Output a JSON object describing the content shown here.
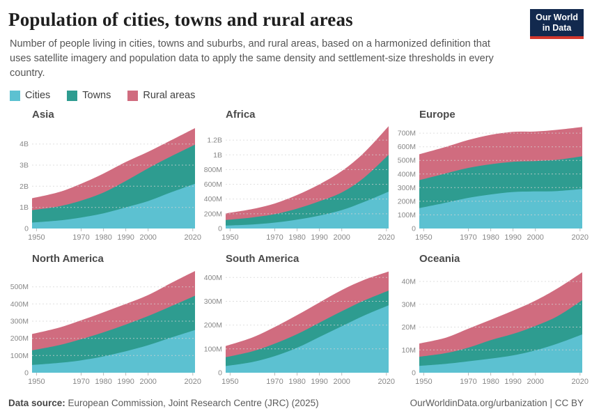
{
  "header": {
    "title": "Population of cities, towns and rural areas",
    "subtitle": "Number of people living in cities, towns and suburbs, and rural areas, based on a harmonized definition that uses satellite imagery and population data to apply the same density and settlement-size thresholds in every country.",
    "logo": {
      "line1": "Our World",
      "line2": "in Data"
    }
  },
  "legend": {
    "items": [
      {
        "label": "Cities",
        "color": "#5cc1d1"
      },
      {
        "label": "Towns",
        "color": "#2e9c90"
      },
      {
        "label": "Rural areas",
        "color": "#d06c7f"
      }
    ]
  },
  "style": {
    "grid_color": "#d4d4d4",
    "tick_color": "#b9b9b9",
    "axis_text_color": "#878787",
    "accent_navy": "#12294e",
    "accent_red": "#d2372c"
  },
  "footer": {
    "source_label": "Data source:",
    "source_text": " European Commission, Joint Research Centre (JRC) (2025)",
    "right_text": "OurWorldinData.org/urbanization | CC BY"
  },
  "chart_data": [
    {
      "type": "area",
      "stacked": true,
      "title": "Asia",
      "unit": "billions",
      "x": [
        1948,
        1960,
        1970,
        1980,
        1990,
        2000,
        2010,
        2021
      ],
      "xlim": [
        1948,
        2021
      ],
      "xticks": [
        1950,
        1970,
        1980,
        1990,
        2000,
        2020
      ],
      "ylim": [
        0,
        4.88
      ],
      "grid": true,
      "yticks": [
        {
          "v": 0,
          "label": "0"
        },
        {
          "v": 1,
          "label": "1B"
        },
        {
          "v": 2,
          "label": "2B"
        },
        {
          "v": 3,
          "label": "3B"
        },
        {
          "v": 4,
          "label": "4B"
        }
      ],
      "series": [
        {
          "name": "Cities",
          "color": "#5cc1d1",
          "values": [
            0.28,
            0.38,
            0.52,
            0.72,
            1.0,
            1.3,
            1.7,
            2.12
          ]
        },
        {
          "name": "Towns",
          "color": "#2e9c90",
          "values": [
            0.59,
            0.67,
            0.8,
            0.98,
            1.25,
            1.55,
            1.7,
            1.85
          ]
        },
        {
          "name": "Rural areas",
          "color": "#d06c7f",
          "values": [
            0.56,
            0.67,
            0.8,
            0.9,
            0.9,
            0.78,
            0.76,
            0.78
          ]
        }
      ]
    },
    {
      "type": "area",
      "stacked": true,
      "title": "Africa",
      "unit": "millions",
      "x": [
        1948,
        1960,
        1970,
        1980,
        1990,
        2000,
        2010,
        2021
      ],
      "xlim": [
        1948,
        2021
      ],
      "xticks": [
        1950,
        1970,
        1980,
        1990,
        2000,
        2020
      ],
      "ylim": [
        0,
        1400
      ],
      "grid": true,
      "yticks": [
        {
          "v": 0,
          "label": "0"
        },
        {
          "v": 200,
          "label": "200M"
        },
        {
          "v": 400,
          "label": "400M"
        },
        {
          "v": 600,
          "label": "600M"
        },
        {
          "v": 800,
          "label": "800M"
        },
        {
          "v": 1000,
          "label": "1B"
        },
        {
          "v": 1200,
          "label": "1.2B"
        }
      ],
      "series": [
        {
          "name": "Cities",
          "color": "#5cc1d1",
          "values": [
            40,
            55,
            80,
            120,
            175,
            250,
            360,
            500
          ]
        },
        {
          "name": "Towns",
          "color": "#2e9c90",
          "values": [
            75,
            95,
            115,
            150,
            195,
            240,
            330,
            500
          ]
        },
        {
          "name": "Rural areas",
          "color": "#d06c7f",
          "values": [
            90,
            115,
            145,
            185,
            230,
            290,
            340,
            390
          ]
        }
      ]
    },
    {
      "type": "area",
      "stacked": true,
      "title": "Europe",
      "unit": "millions",
      "x": [
        1948,
        1960,
        1970,
        1980,
        1990,
        2000,
        2010,
        2021
      ],
      "xlim": [
        1948,
        2021
      ],
      "xticks": [
        1950,
        1970,
        1980,
        1990,
        2000,
        2020
      ],
      "ylim": [
        0,
        757
      ],
      "grid": true,
      "yticks": [
        {
          "v": 0,
          "label": "0"
        },
        {
          "v": 100,
          "label": "100M"
        },
        {
          "v": 200,
          "label": "200M"
        },
        {
          "v": 300,
          "label": "300M"
        },
        {
          "v": 400,
          "label": "400M"
        },
        {
          "v": 500,
          "label": "500M"
        },
        {
          "v": 600,
          "label": "600M"
        },
        {
          "v": 700,
          "label": "700M"
        }
      ],
      "series": [
        {
          "name": "Cities",
          "color": "#5cc1d1",
          "values": [
            150,
            190,
            225,
            250,
            268,
            272,
            275,
            290
          ]
        },
        {
          "name": "Towns",
          "color": "#2e9c90",
          "values": [
            205,
            215,
            220,
            222,
            222,
            223,
            230,
            240
          ]
        },
        {
          "name": "Rural areas",
          "color": "#d06c7f",
          "values": [
            190,
            195,
            205,
            216,
            220,
            217,
            220,
            215
          ]
        }
      ]
    },
    {
      "type": "area",
      "stacked": true,
      "title": "North America",
      "unit": "millions",
      "x": [
        1948,
        1960,
        1970,
        1980,
        1990,
        2000,
        2010,
        2021
      ],
      "xlim": [
        1948,
        2021
      ],
      "xticks": [
        1950,
        1970,
        1980,
        1990,
        2000,
        2020
      ],
      "ylim": [
        0,
        600
      ],
      "grid": true,
      "yticks": [
        {
          "v": 0,
          "label": "0"
        },
        {
          "v": 100,
          "label": "100M"
        },
        {
          "v": 200,
          "label": "200M"
        },
        {
          "v": 300,
          "label": "300M"
        },
        {
          "v": 400,
          "label": "400M"
        },
        {
          "v": 500,
          "label": "500M"
        }
      ],
      "series": [
        {
          "name": "Cities",
          "color": "#5cc1d1",
          "values": [
            45,
            57,
            72,
            95,
            125,
            160,
            203,
            248
          ]
        },
        {
          "name": "Towns",
          "color": "#2e9c90",
          "values": [
            85,
            103,
            123,
            140,
            155,
            170,
            182,
            200
          ]
        },
        {
          "name": "Rural areas",
          "color": "#d06c7f",
          "values": [
            95,
            102,
            110,
            117,
            120,
            122,
            135,
            144
          ]
        }
      ]
    },
    {
      "type": "area",
      "stacked": true,
      "title": "South America",
      "unit": "millions",
      "x": [
        1948,
        1960,
        1970,
        1980,
        1990,
        2000,
        2010,
        2021
      ],
      "xlim": [
        1948,
        2021
      ],
      "xticks": [
        1950,
        1970,
        1980,
        1990,
        2000,
        2020
      ],
      "ylim": [
        0,
        433
      ],
      "grid": true,
      "yticks": [
        {
          "v": 0,
          "label": "0"
        },
        {
          "v": 100,
          "label": "100M"
        },
        {
          "v": 200,
          "label": "200M"
        },
        {
          "v": 300,
          "label": "300M"
        },
        {
          "v": 400,
          "label": "400M"
        }
      ],
      "series": [
        {
          "name": "Cities",
          "color": "#5cc1d1",
          "values": [
            28,
            45,
            70,
            105,
            150,
            195,
            240,
            283
          ]
        },
        {
          "name": "Towns",
          "color": "#2e9c90",
          "values": [
            37,
            45,
            52,
            57,
            60,
            63,
            63,
            62
          ]
        },
        {
          "name": "Rural areas",
          "color": "#d06c7f",
          "values": [
            47,
            58,
            70,
            80,
            85,
            89,
            87,
            80
          ]
        }
      ]
    },
    {
      "type": "area",
      "stacked": true,
      "title": "Oceania",
      "unit": "millions",
      "x": [
        1948,
        1960,
        1970,
        1980,
        1990,
        2000,
        2010,
        2021
      ],
      "xlim": [
        1948,
        2021
      ],
      "xticks": [
        1950,
        1970,
        1980,
        1990,
        2000,
        2020
      ],
      "ylim": [
        0,
        45.2
      ],
      "grid": true,
      "yticks": [
        {
          "v": 0,
          "label": "0"
        },
        {
          "v": 10,
          "label": "10M"
        },
        {
          "v": 20,
          "label": "20M"
        },
        {
          "v": 30,
          "label": "30M"
        },
        {
          "v": 40,
          "label": "40M"
        }
      ],
      "series": [
        {
          "name": "Cities",
          "color": "#5cc1d1",
          "values": [
            3.0,
            3.9,
            5.0,
            6.2,
            7.6,
            9.8,
            12.8,
            16.8
          ]
        },
        {
          "name": "Towns",
          "color": "#2e9c90",
          "values": [
            4.0,
            4.7,
            6.0,
            8.1,
            9.4,
            10.7,
            12.0,
            15.0
          ]
        },
        {
          "name": "Rural areas",
          "color": "#d06c7f",
          "values": [
            5.8,
            6.8,
            8.3,
            8.9,
            10.2,
            11.1,
            12.2,
            12.2
          ]
        }
      ]
    }
  ]
}
